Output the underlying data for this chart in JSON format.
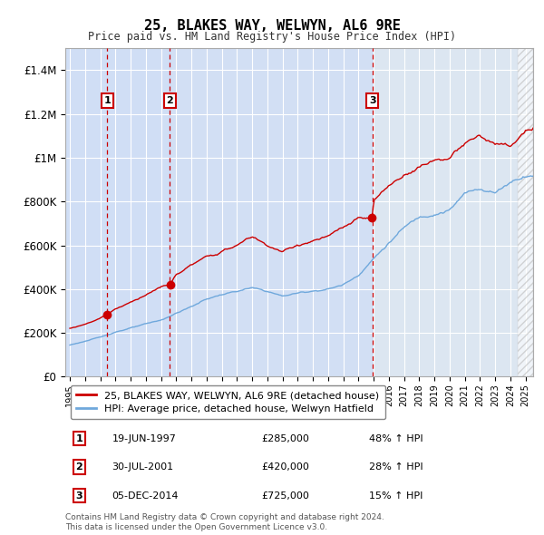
{
  "title": "25, BLAKES WAY, WELWYN, AL6 9RE",
  "subtitle": "Price paid vs. HM Land Registry's House Price Index (HPI)",
  "xlim": [
    1994.7,
    2025.5
  ],
  "ylim": [
    0,
    1500000
  ],
  "yticks": [
    0,
    200000,
    400000,
    600000,
    800000,
    1000000,
    1200000,
    1400000
  ],
  "ytick_labels": [
    "£0",
    "£200K",
    "£400K",
    "£600K",
    "£800K",
    "£1M",
    "£1.2M",
    "£1.4M"
  ],
  "background_color": "#dce6f1",
  "grid_color": "#ffffff",
  "hpi_line_color": "#6fa8dc",
  "price_line_color": "#cc0000",
  "sale_marker_color": "#cc0000",
  "dashed_line_color": "#cc0000",
  "shade_color": "#c9daf8",
  "transactions": [
    {
      "num": 1,
      "date_str": "19-JUN-1997",
      "year": 1997.46,
      "price": 285000,
      "pct": "48%"
    },
    {
      "num": 2,
      "date_str": "30-JUL-2001",
      "year": 2001.58,
      "price": 420000,
      "pct": "28%"
    },
    {
      "num": 3,
      "date_str": "05-DEC-2014",
      "year": 2014.92,
      "price": 725000,
      "pct": "15%"
    }
  ],
  "legend_line1": "25, BLAKES WAY, WELWYN, AL6 9RE (detached house)",
  "legend_line2": "HPI: Average price, detached house, Welwyn Hatfield",
  "footer1": "Contains HM Land Registry data © Crown copyright and database right 2024.",
  "footer2": "This data is licensed under the Open Government Licence v3.0.",
  "hatch_region_start": 2024.5,
  "hpi_key_years": [
    1995,
    1996,
    1997,
    1998,
    1999,
    2000,
    2001,
    2002,
    2003,
    2004,
    2005,
    2006,
    2007,
    2008,
    2009,
    2010,
    2011,
    2012,
    2013,
    2014,
    2015,
    2016,
    2017,
    2018,
    2019,
    2020,
    2021,
    2022,
    2023,
    2024,
    2025
  ],
  "hpi_key_vals": [
    145000,
    162000,
    180000,
    205000,
    222000,
    240000,
    258000,
    290000,
    320000,
    355000,
    375000,
    390000,
    405000,
    390000,
    368000,
    382000,
    392000,
    400000,
    420000,
    465000,
    540000,
    610000,
    680000,
    730000,
    745000,
    760000,
    835000,
    860000,
    840000,
    890000,
    920000
  ],
  "price_key_years": [
    1995,
    1996,
    1997,
    1997.46,
    1998,
    1999,
    2000,
    2001,
    2001.58,
    2002,
    2003,
    2004,
    2005,
    2006,
    2007,
    2008,
    2009,
    2010,
    2011,
    2012,
    2013,
    2014,
    2014.92,
    2015,
    2016,
    2017,
    2018,
    2019,
    2020,
    2021,
    2022,
    2023,
    2024,
    2025
  ],
  "price_key_vals": [
    220000,
    240000,
    268000,
    285000,
    310000,
    340000,
    375000,
    410000,
    420000,
    465000,
    510000,
    545000,
    570000,
    600000,
    640000,
    600000,
    570000,
    600000,
    620000,
    640000,
    680000,
    720000,
    725000,
    800000,
    870000,
    920000,
    960000,
    990000,
    1000000,
    1060000,
    1100000,
    1060000,
    1050000,
    1120000
  ]
}
